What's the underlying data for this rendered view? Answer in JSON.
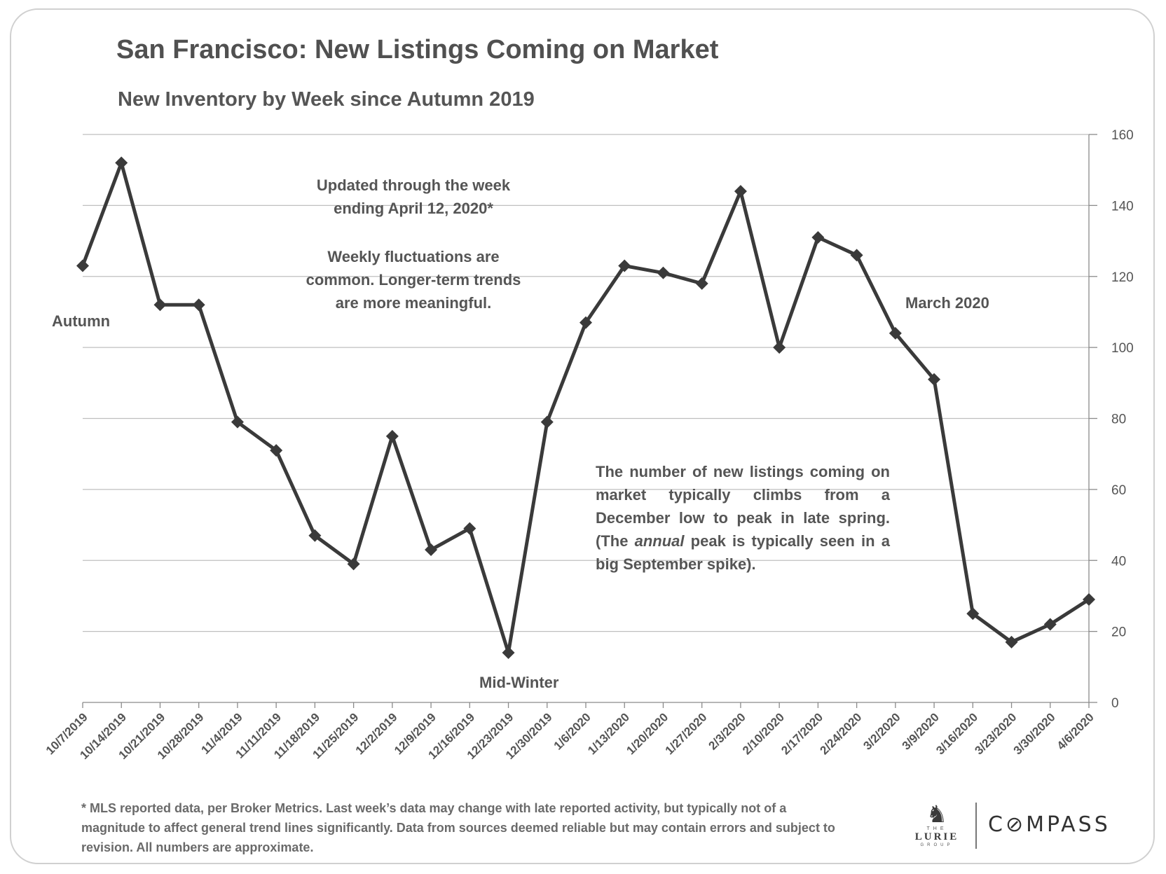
{
  "title": "San Francisco: New Listings Coming on Market",
  "subtitle": "New Inventory by Week since Autumn 2019",
  "annotations": {
    "updated_1": "Updated through the week",
    "updated_2": "ending April 12, 2020*",
    "fluct_1": "Weekly fluctuations are",
    "fluct_2": "common. Longer-term trends",
    "fluct_3": "are more meaningful.",
    "autumn": "Autumn",
    "midwinter": "Mid-Winter",
    "march": "March 2020",
    "note_a": "The number of new listings coming on market typically climbs from a December low to peak in late spring. (The ",
    "note_em": "annual",
    "note_b": " peak is typically seen in a big September spike)."
  },
  "footnote": "* MLS reported data, per Broker Metrics. Last week’s data may change with late reported activity, but typically not of a magnitude to affect general trend lines significantly. Data from sources deemed reliable but may contain errors and subject to revision. All numbers are approximate.",
  "logos": {
    "lurie_the": "THE",
    "lurie_name": "LURIE",
    "lurie_group": "GROUP",
    "compass": "C⊘MPASS"
  },
  "colors": {
    "line": "#3a3a3a",
    "grid": "#bfbfbf",
    "text": "#555555"
  },
  "chart_data": {
    "type": "line",
    "title": "San Francisco: New Listings Coming on Market",
    "subtitle": "New Inventory by Week since Autumn 2019",
    "xlabel": "",
    "ylabel": "",
    "y_axis_side": "right",
    "ylim": [
      0,
      160
    ],
    "yticks": [
      0,
      20,
      40,
      60,
      80,
      100,
      120,
      140,
      160
    ],
    "grid": true,
    "legend": "none",
    "marker": "diamond",
    "categories": [
      "10/7/2019",
      "10/14/2019",
      "10/21/2019",
      "10/28/2019",
      "11/4/2019",
      "11/11/2019",
      "11/18/2019",
      "11/25/2019",
      "12/2/2019",
      "12/9/2019",
      "12/16/2019",
      "12/23/2019",
      "12/30/2019",
      "1/6/2020",
      "1/13/2020",
      "1/20/2020",
      "1/27/2020",
      "2/3/2020",
      "2/10/2020",
      "2/17/2020",
      "2/24/2020",
      "3/2/2020",
      "3/9/2020",
      "3/16/2020",
      "3/23/2020",
      "3/30/2020",
      "4/6/2020"
    ],
    "values": [
      123,
      152,
      112,
      112,
      79,
      71,
      47,
      39,
      75,
      43,
      49,
      14,
      79,
      107,
      123,
      121,
      118,
      144,
      100,
      131,
      126,
      104,
      91,
      25,
      17,
      22,
      29
    ]
  }
}
